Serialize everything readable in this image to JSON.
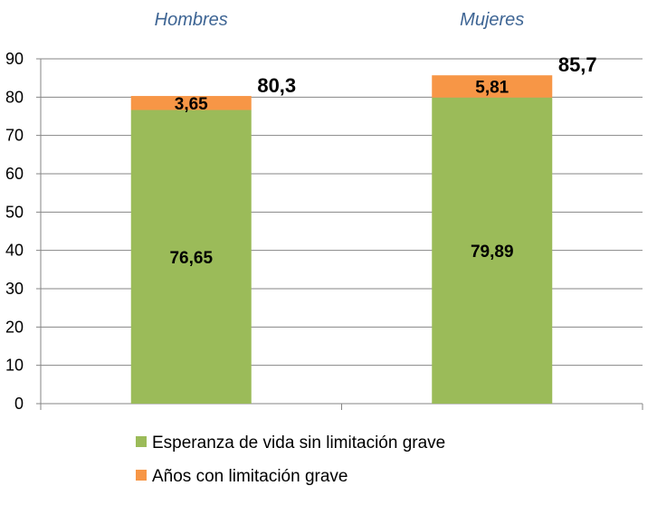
{
  "chart_data": {
    "type": "bar",
    "stacked": true,
    "categories": [
      "Hombres",
      "Mujeres"
    ],
    "series": [
      {
        "name": "Esperanza de vida sin limitación grave",
        "values": [
          76.65,
          79.89
        ],
        "labels": [
          "76,65",
          "79,89"
        ],
        "color": "#9bbb59"
      },
      {
        "name": "Años con limitación grave",
        "values": [
          3.65,
          5.81
        ],
        "labels": [
          "3,65",
          "5,81"
        ],
        "color": "#f79646"
      }
    ],
    "totals": [
      80.3,
      85.7
    ],
    "total_labels": [
      "80,3",
      "85,7"
    ],
    "ylim": [
      0,
      90
    ],
    "yticks": [
      "0",
      "10",
      "20",
      "30",
      "40",
      "50",
      "60",
      "70",
      "80",
      "90"
    ],
    "grid": true,
    "category_label_position": "top",
    "legend_position": "bottom"
  }
}
